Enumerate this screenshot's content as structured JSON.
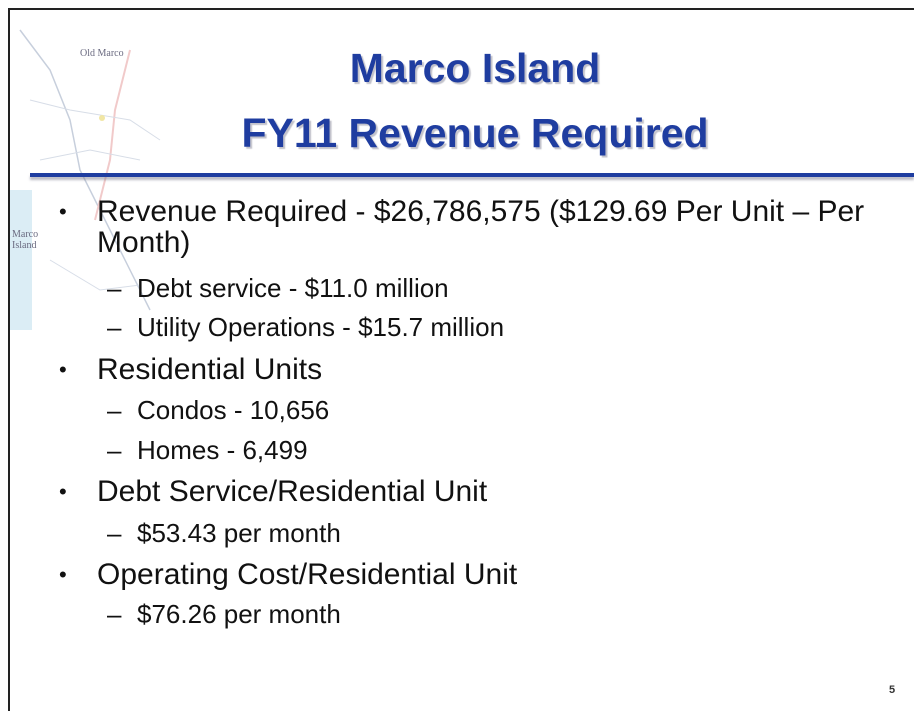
{
  "map_labels": {
    "place": "Old Marco",
    "island": [
      "Marco",
      "Island"
    ]
  },
  "title": [
    "Marco Island",
    "FY11 Revenue Required"
  ],
  "bullets": [
    {
      "text": "Revenue Required - $26,786,575 ($129.69 Per Unit – Per Month)",
      "items": [
        "Debt service - $11.0 million",
        "Utility Operations - $15.7 million"
      ]
    },
    {
      "text": "Residential Units",
      "items": [
        "Condos - 10,656",
        "Homes - 6,499"
      ]
    },
    {
      "text": "Debt Service/Residential Unit",
      "items": [
        "$53.43 per month"
      ]
    },
    {
      "text": "Operating Cost/Residential Unit",
      "items": [
        "$76.26 per month"
      ]
    }
  ],
  "page_number": "5"
}
